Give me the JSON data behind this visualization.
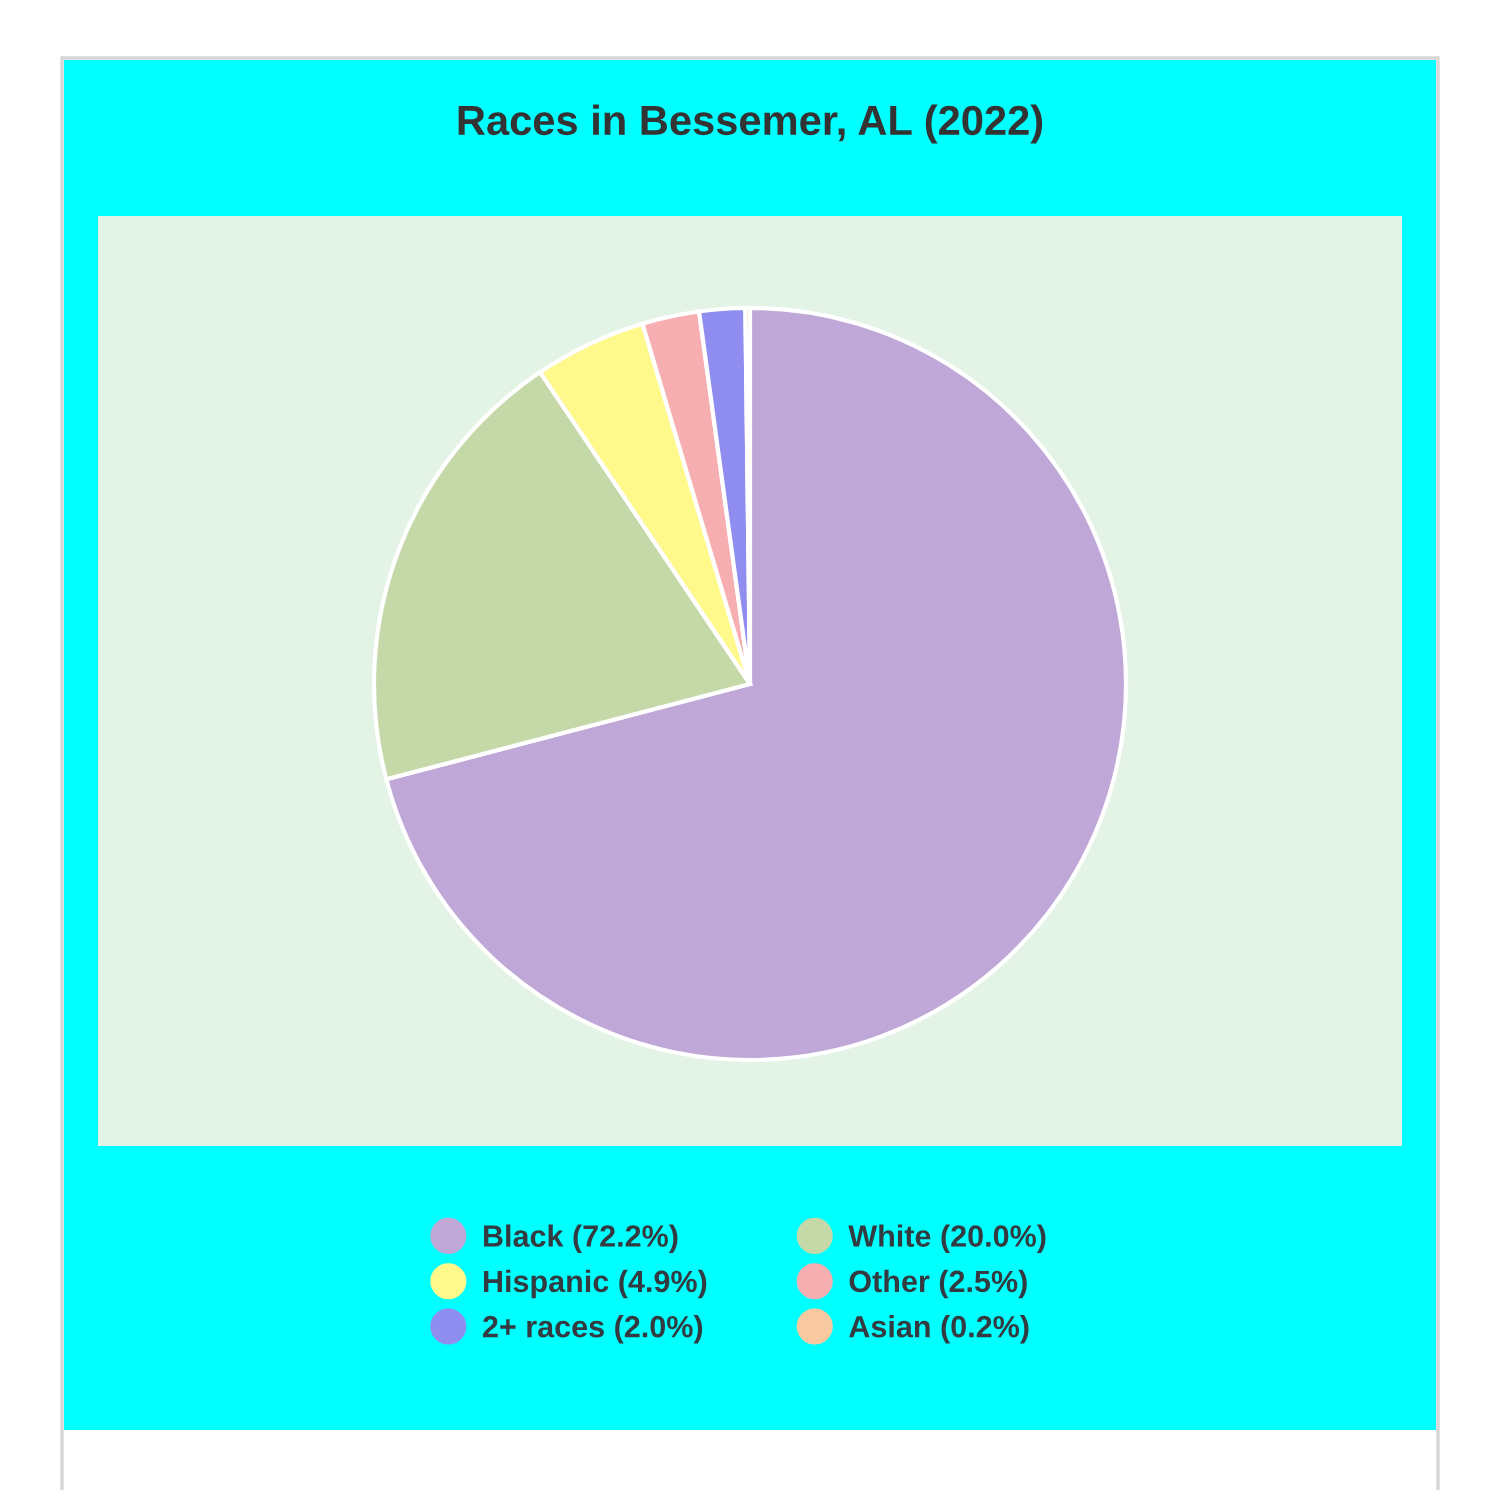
{
  "chart_data": {
    "type": "pie",
    "title": "Races in Bessemer, AL (2022)",
    "categories": [
      "Black (72.2%)",
      "White (20.0%)",
      "Hispanic (4.9%)",
      "Other (2.5%)",
      "2+ races (2.0%)",
      "Asian (0.2%)"
    ],
    "values": [
      72.2,
      20.0,
      4.9,
      2.5,
      2.0,
      0.2
    ],
    "colors": [
      "#bfa7d8",
      "#c4d8a8",
      "#fff88a",
      "#f7aeb0",
      "#8f8ef0",
      "#f8c8a0"
    ],
    "legend": "bottom"
  }
}
